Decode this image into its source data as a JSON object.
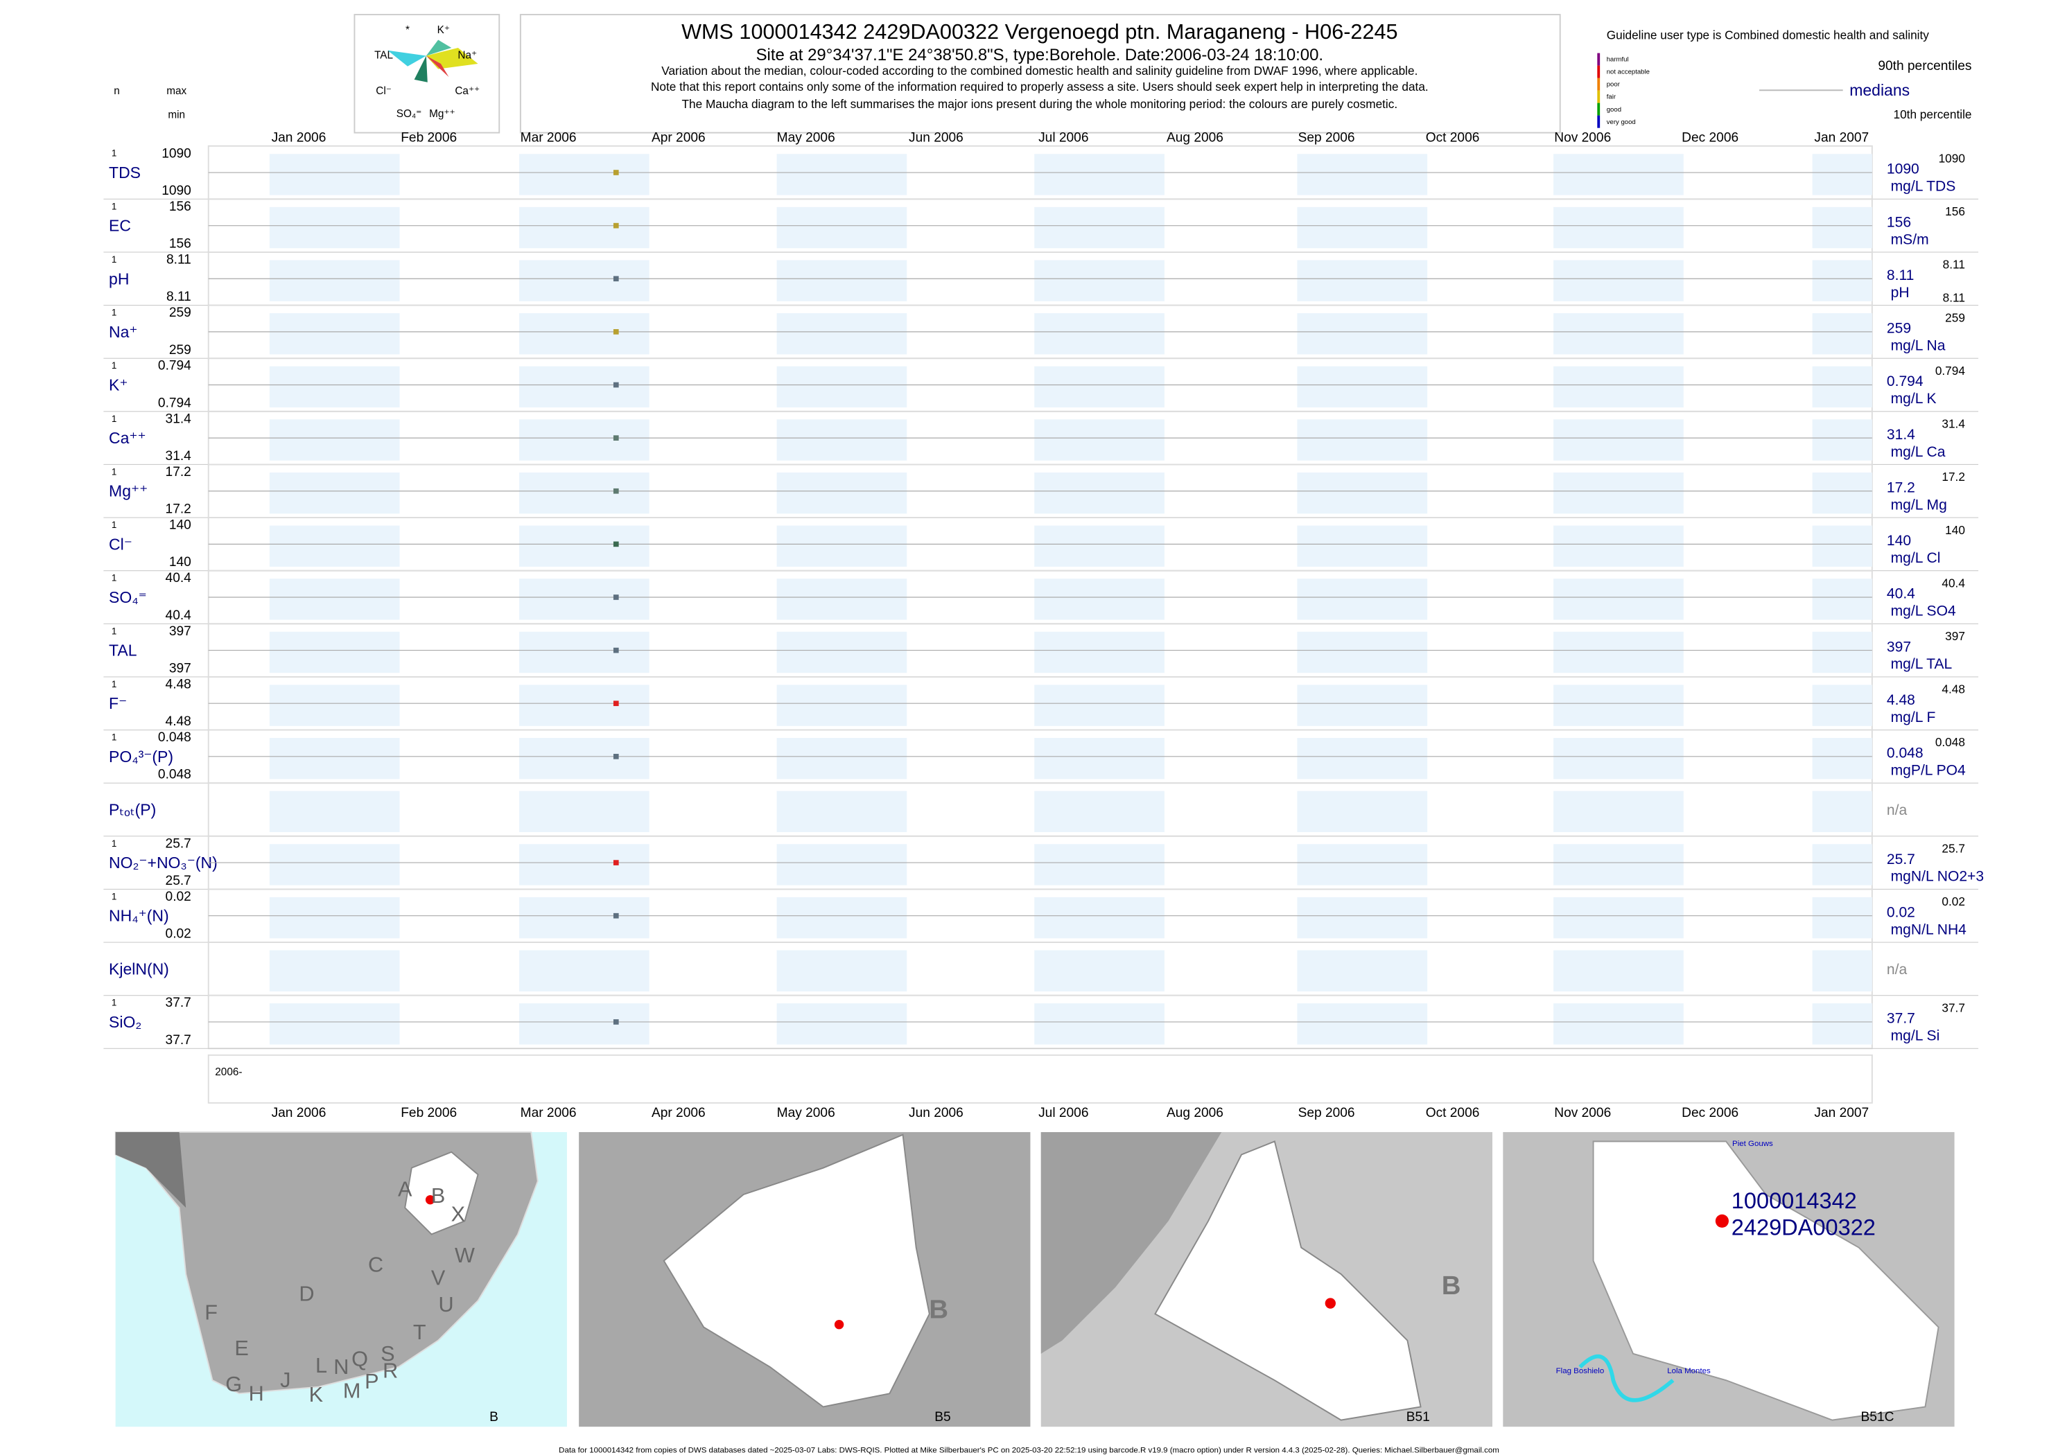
{
  "header": {
    "title": "WMS 1000014342 2429DA00322 Vergenoegd ptn. Maraganeng - H06-2245",
    "site": "Site at 29°34'37.1\"E 24°38'50.8\"S, type:Borehole. Date:2006-03-24 18:10:00.",
    "notes": [
      "Variation about the median,  colour-coded according to the combined domestic health and salinity guideline from DWAF 1996, where applicable.",
      "Note that this report contains only some of the information required to properly assess a site. Users should seek expert help in interpreting the data.",
      "The Maucha diagram to the left summarises the major ions present during the whole monitoring period: the colours are purely cosmetic."
    ],
    "maucha_labels": [
      "*",
      "K⁺",
      "TAL",
      "Na⁺",
      "Cl⁻",
      "Ca⁺⁺",
      "SO₄⁼",
      "Mg⁺⁺"
    ]
  },
  "legend": {
    "title": "Guideline user type is Combined domestic health and salinity",
    "classes": [
      {
        "name": "harmful",
        "color": "#800080"
      },
      {
        "name": "not acceptable",
        "color": "#e00000"
      },
      {
        "name": "poor",
        "color": "#f08000"
      },
      {
        "name": "fair",
        "color": "#e0c000"
      },
      {
        "name": "good",
        "color": "#00a000"
      },
      {
        "name": "very good",
        "color": "#0000c0"
      }
    ],
    "p90": "90th percentiles",
    "median": "medians",
    "p10": "10th percentile"
  },
  "columns": {
    "n": "n",
    "max": "max",
    "min": "min"
  },
  "months": [
    "Jan 2006",
    "Feb 2006",
    "Mar 2006",
    "Apr 2006",
    "May 2006",
    "Jun 2006",
    "Jul 2006",
    "Aug 2006",
    "Sep 2006",
    "Oct 2006",
    "Nov 2006",
    "Dec 2006",
    "Jan 2007"
  ],
  "year_label": "2006-",
  "rows": [
    {
      "label": "TDS",
      "n": 1,
      "max": 1090,
      "min": 1090,
      "median": 1090,
      "unit": "mg/L TDS",
      "p90": 1090,
      "color": "#b8a030"
    },
    {
      "label": "EC",
      "n": 1,
      "max": 156,
      "min": 156,
      "median": 156,
      "unit": "mS/m",
      "p90": 156,
      "color": "#b8a030"
    },
    {
      "label": "pH",
      "n": 1,
      "max": 8.11,
      "min": 8.11,
      "median": 8.11,
      "unit": "pH",
      "p90": 8.11,
      "p10": 8.11,
      "color": "#5e7080"
    },
    {
      "label": "Na⁺",
      "n": 1,
      "max": 259,
      "min": 259,
      "median": 259,
      "unit": "mg/L Na",
      "p90": 259,
      "color": "#b8a030"
    },
    {
      "label": "K⁺",
      "n": 1,
      "max": 0.794,
      "min": 0.794,
      "median": 0.794,
      "unit": "mg/L K",
      "p90": 0.794,
      "color": "#5e7080"
    },
    {
      "label": "Ca⁺⁺",
      "n": 1,
      "max": 31.4,
      "min": 31.4,
      "median": 31.4,
      "unit": "mg/L Ca",
      "p90": 31.4,
      "color": "#5e7a70"
    },
    {
      "label": "Mg⁺⁺",
      "n": 1,
      "max": 17.2,
      "min": 17.2,
      "median": 17.2,
      "unit": "mg/L Mg",
      "p90": 17.2,
      "color": "#5e7a70"
    },
    {
      "label": "Cl⁻",
      "n": 1,
      "max": 140,
      "min": 140,
      "median": 140,
      "unit": "mg/L Cl",
      "p90": 140,
      "color": "#3a6a50"
    },
    {
      "label": "SO₄⁼",
      "n": 1,
      "max": 40.4,
      "min": 40.4,
      "median": 40.4,
      "unit": "mg/L SO4",
      "p90": 40.4,
      "color": "#5e7080"
    },
    {
      "label": "TAL",
      "n": 1,
      "max": 397,
      "min": 397,
      "median": 397,
      "unit": "mg/L TAL",
      "p90": 397,
      "color": "#5e7080"
    },
    {
      "label": "F⁻",
      "n": 1,
      "max": 4.48,
      "min": 4.48,
      "median": 4.48,
      "unit": "mg/L F",
      "p90": 4.48,
      "color": "#e02020"
    },
    {
      "label": "PO₄³⁻(P)",
      "n": 1,
      "max": 0.048,
      "min": 0.048,
      "median": 0.048,
      "unit": "mgP/L PO4",
      "p90": 0.048,
      "color": "#5e7080"
    },
    {
      "label": "Pₜₒₜ(P)",
      "na": "n/a"
    },
    {
      "label": "NO₂⁻+NO₃⁻(N)",
      "n": 1,
      "max": 25.7,
      "min": 25.7,
      "median": 25.7,
      "unit": "mgN/L NO2+3",
      "p90": 25.7,
      "color": "#e02020"
    },
    {
      "label": "NH₄⁺(N)",
      "n": 1,
      "max": 0.02,
      "min": 0.02,
      "median": 0.02,
      "unit": "mgN/L NH4",
      "p90": 0.02,
      "color": "#5e7080"
    },
    {
      "label": "KjelN(N)",
      "na": "n/a"
    },
    {
      "label": "SiO₂",
      "n": 1,
      "max": 37.7,
      "min": 37.7,
      "median": 37.7,
      "unit": "mg/L Si",
      "p90": 37.7,
      "color": "#5e7080"
    }
  ],
  "maps": {
    "regions": [
      "A",
      "B",
      "X",
      "C",
      "W",
      "D",
      "V",
      "U",
      "F",
      "E",
      "T",
      "S",
      "R",
      "Q",
      "N",
      "L",
      "P",
      "M",
      "K",
      "J",
      "H",
      "G"
    ],
    "captions": [
      "B",
      "B5",
      "B51",
      "B51C"
    ],
    "places": [
      "Piet Gouws",
      "Flag Boshielo",
      "Lola Montes"
    ],
    "site_label": [
      "1000014342",
      "2429DA00322"
    ]
  },
  "footer": "Data for 1000014342 from copies of DWS databases dated ~2025-03-07 Labs: DWS-RQIS. Plotted at Mike Silberbauer's PC on 2025-03-20 22:52:19 using barcode.R v19.9 (macro option) under R version 4.4.3 (2025-02-28). Queries: Michael.Silberbauer@gmail.com"
}
